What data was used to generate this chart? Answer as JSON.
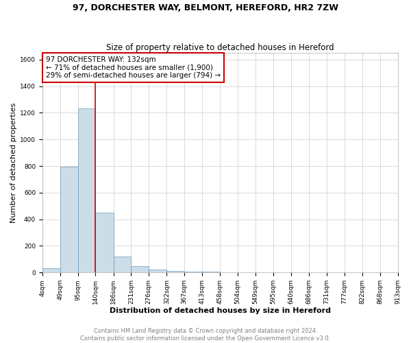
{
  "title": "97, DORCHESTER WAY, BELMONT, HEREFORD, HR2 7ZW",
  "subtitle": "Size of property relative to detached houses in Hereford",
  "xlabel": "Distribution of detached houses by size in Hereford",
  "ylabel": "Number of detached properties",
  "footer_line1": "Contains HM Land Registry data © Crown copyright and database right 2024.",
  "footer_line2": "Contains public sector information licensed under the Open Government Licence v3.0.",
  "annotation_line1": "97 DORCHESTER WAY: 132sqm",
  "annotation_line2": "← 71% of detached houses are smaller (1,900)",
  "annotation_line3": "29% of semi-detached houses are larger (794) →",
  "bin_edges": [
    4,
    49,
    95,
    140,
    186,
    231,
    276,
    322,
    367,
    413,
    458,
    504,
    549,
    595,
    640,
    686,
    731,
    777,
    822,
    868,
    913
  ],
  "bin_labels": [
    "4sqm",
    "49sqm",
    "95sqm",
    "140sqm",
    "186sqm",
    "231sqm",
    "276sqm",
    "322sqm",
    "367sqm",
    "413sqm",
    "458sqm",
    "504sqm",
    "549sqm",
    "595sqm",
    "640sqm",
    "686sqm",
    "731sqm",
    "777sqm",
    "822sqm",
    "868sqm",
    "913sqm"
  ],
  "bar_heights": [
    30,
    797,
    1232,
    450,
    120,
    50,
    20,
    10,
    5,
    5,
    0,
    0,
    0,
    0,
    0,
    0,
    0,
    0,
    0,
    0
  ],
  "bar_color": "#ccdde8",
  "bar_edge_color": "#6699bb",
  "vline_color": "#cc0000",
  "vline_x_bin": 3,
  "annotation_box_color": "#ffffff",
  "annotation_box_edgecolor": "#cc0000",
  "ylim": [
    0,
    1650
  ],
  "yticks": [
    0,
    200,
    400,
    600,
    800,
    1000,
    1200,
    1400,
    1600
  ],
  "grid_color": "#cccccc",
  "title_fontsize": 9,
  "subtitle_fontsize": 8.5,
  "xlabel_fontsize": 8,
  "ylabel_fontsize": 8,
  "tick_fontsize": 6.5,
  "footer_fontsize": 6,
  "annotation_fontsize": 7.5,
  "fig_width": 6.0,
  "fig_height": 5.0,
  "dpi": 100
}
